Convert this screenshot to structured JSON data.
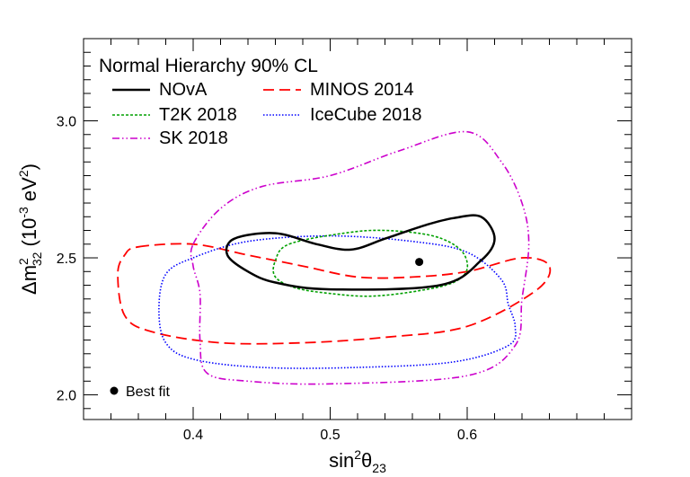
{
  "chart_data": {
    "type": "line",
    "title": "Normal Hierarchy 90% CL",
    "xlabel": "sin²θ₂₃",
    "ylabel": "Δm²₃₂ (10⁻³ eV²)",
    "xlim": [
      0.32,
      0.72
    ],
    "ylim": [
      1.91,
      3.3
    ],
    "x_ticks": [
      {
        "value": 0.4,
        "label": "0.4"
      },
      {
        "value": 0.5,
        "label": "0.5"
      },
      {
        "value": 0.6,
        "label": "0.6"
      }
    ],
    "y_ticks": [
      {
        "value": 2.0,
        "label": "2.0"
      },
      {
        "value": 2.5,
        "label": "2.5"
      },
      {
        "value": 3.0,
        "label": "3.0"
      }
    ],
    "legend_placement": "top-left",
    "grid": false,
    "series": [
      {
        "name": "NOvA",
        "color": "#000000",
        "dash": "solid",
        "closed": true,
        "points": [
          [
            0.43,
            2.57
          ],
          [
            0.46,
            2.59
          ],
          [
            0.49,
            2.55
          ],
          [
            0.515,
            2.53
          ],
          [
            0.54,
            2.57
          ],
          [
            0.57,
            2.62
          ],
          [
            0.59,
            2.645
          ],
          [
            0.61,
            2.65
          ],
          [
            0.62,
            2.57
          ],
          [
            0.61,
            2.49
          ],
          [
            0.58,
            2.4
          ],
          [
            0.5,
            2.385
          ],
          [
            0.46,
            2.41
          ],
          [
            0.44,
            2.45
          ],
          [
            0.425,
            2.51
          ]
        ]
      },
      {
        "name": "MINOS 2014",
        "color": "#ff0000",
        "dash": "longdash",
        "closed": true,
        "points": [
          [
            0.36,
            2.54
          ],
          [
            0.4,
            2.55
          ],
          [
            0.44,
            2.51
          ],
          [
            0.48,
            2.47
          ],
          [
            0.52,
            2.43
          ],
          [
            0.56,
            2.43
          ],
          [
            0.6,
            2.45
          ],
          [
            0.64,
            2.5
          ],
          [
            0.66,
            2.47
          ],
          [
            0.65,
            2.38
          ],
          [
            0.6,
            2.25
          ],
          [
            0.54,
            2.21
          ],
          [
            0.48,
            2.19
          ],
          [
            0.42,
            2.19
          ],
          [
            0.37,
            2.23
          ],
          [
            0.35,
            2.29
          ],
          [
            0.345,
            2.44
          ],
          [
            0.35,
            2.51
          ]
        ]
      },
      {
        "name": "T2K 2018",
        "color": "#00a000",
        "dash": "fine",
        "closed": true,
        "points": [
          [
            0.47,
            2.55
          ],
          [
            0.51,
            2.59
          ],
          [
            0.54,
            2.6
          ],
          [
            0.575,
            2.58
          ],
          [
            0.595,
            2.53
          ],
          [
            0.6,
            2.46
          ],
          [
            0.59,
            2.41
          ],
          [
            0.565,
            2.38
          ],
          [
            0.53,
            2.36
          ],
          [
            0.5,
            2.37
          ],
          [
            0.475,
            2.39
          ],
          [
            0.46,
            2.43
          ],
          [
            0.46,
            2.49
          ]
        ]
      },
      {
        "name": "IceCube 2018",
        "color": "#0000ff",
        "dash": "dotted",
        "closed": true,
        "points": [
          [
            0.4,
            2.5
          ],
          [
            0.44,
            2.56
          ],
          [
            0.5,
            2.58
          ],
          [
            0.56,
            2.56
          ],
          [
            0.6,
            2.52
          ],
          [
            0.625,
            2.42
          ],
          [
            0.63,
            2.33
          ],
          [
            0.635,
            2.25
          ],
          [
            0.63,
            2.18
          ],
          [
            0.59,
            2.12
          ],
          [
            0.52,
            2.1
          ],
          [
            0.45,
            2.1
          ],
          [
            0.4,
            2.13
          ],
          [
            0.38,
            2.19
          ],
          [
            0.375,
            2.31
          ],
          [
            0.38,
            2.44
          ]
        ]
      },
      {
        "name": "SK 2018",
        "color": "#cc00cc",
        "dash": "dashdot",
        "closed": true,
        "points": [
          [
            0.4,
            2.55
          ],
          [
            0.42,
            2.68
          ],
          [
            0.45,
            2.76
          ],
          [
            0.5,
            2.8
          ],
          [
            0.55,
            2.89
          ],
          [
            0.6,
            2.96
          ],
          [
            0.625,
            2.85
          ],
          [
            0.64,
            2.7
          ],
          [
            0.645,
            2.55
          ],
          [
            0.64,
            2.35
          ],
          [
            0.635,
            2.18
          ],
          [
            0.6,
            2.07
          ],
          [
            0.5,
            2.04
          ],
          [
            0.44,
            2.05
          ],
          [
            0.41,
            2.08
          ],
          [
            0.405,
            2.2
          ],
          [
            0.405,
            2.37
          ],
          [
            0.4,
            2.47
          ]
        ]
      }
    ],
    "best_fit": {
      "label": "Best fit",
      "x": 0.565,
      "y": 2.485
    },
    "legend_layout": [
      [
        "NOvA",
        "MINOS 2014"
      ],
      [
        "T2K 2018",
        "IceCube 2018"
      ],
      [
        "SK 2018"
      ]
    ]
  }
}
